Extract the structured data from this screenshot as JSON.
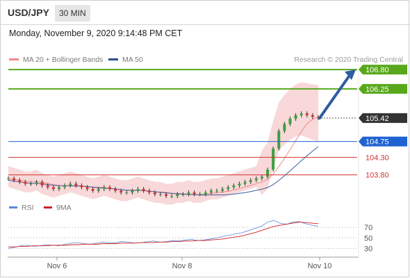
{
  "header": {
    "pair": "USD/JPY",
    "timeframe": "30 MIN"
  },
  "datetime": "Monday, November 9, 2020 9:14:48 PM CET",
  "legend": {
    "ma20": "MA 20 + Bollinger Bands",
    "ma50": "MA 50",
    "credit": "Research © 2020 Trading Central"
  },
  "rsi_legend": {
    "rsi": "RSI",
    "ma": "9MA"
  },
  "colors": {
    "green": "#58a81b",
    "blue": "#1f62d1",
    "red": "#d83030",
    "price": "#333333",
    "band": "#f5c8c8",
    "rsi": "#5b86d6",
    "rsi_ma": "#d02020",
    "arrow": "#2d5da2"
  },
  "chart_data": [
    {
      "type": "candlestick",
      "ylim": [
        103.2,
        107.0
      ],
      "x_ticks": [
        "Nov 6",
        "Nov 8",
        "Nov 10"
      ],
      "levels": [
        {
          "value": 106.8,
          "label": "106.80",
          "style": "resistance-green"
        },
        {
          "value": 106.25,
          "label": "106.25",
          "style": "resistance-green"
        },
        {
          "value": 105.42,
          "label": "105.42",
          "style": "current-price"
        },
        {
          "value": 104.75,
          "label": "104.75",
          "style": "pivot-blue"
        },
        {
          "value": 104.3,
          "label": "104.30",
          "style": "support-red"
        },
        {
          "value": 103.8,
          "label": "103.80",
          "style": "support-red"
        }
      ],
      "close_path": [
        103.7,
        103.65,
        103.6,
        103.55,
        103.55,
        103.6,
        103.5,
        103.45,
        103.4,
        103.45,
        103.5,
        103.55,
        103.5,
        103.45,
        103.4,
        103.35,
        103.4,
        103.45,
        103.4,
        103.35,
        103.3,
        103.3,
        103.35,
        103.4,
        103.35,
        103.3,
        103.25,
        103.25,
        103.2,
        103.2,
        103.25,
        103.25,
        103.3,
        103.25,
        103.25,
        103.3,
        103.35,
        103.35,
        103.4,
        103.45,
        103.5,
        103.55,
        103.6,
        103.65,
        103.7,
        103.75,
        103.95,
        104.55,
        105.05,
        105.25,
        105.4,
        105.5,
        105.55,
        105.5,
        105.45,
        105.42
      ],
      "projection": "up toward 106.80"
    },
    {
      "type": "line",
      "title": "RSI",
      "ylim": [
        20,
        90
      ],
      "y_ticks": [
        70,
        50,
        30
      ],
      "rsi": [
        30,
        32,
        35,
        36,
        34,
        35,
        37,
        36,
        35,
        38,
        40,
        41,
        39,
        38,
        40,
        42,
        40,
        41,
        43,
        42,
        40,
        41,
        43,
        44,
        42,
        43,
        45,
        44,
        46,
        47,
        45,
        46,
        48,
        50,
        53,
        55,
        58,
        60,
        64,
        68,
        72,
        80,
        83,
        78,
        76,
        80,
        81,
        77,
        74,
        72
      ],
      "rsi_ma": [
        33,
        33,
        34,
        34,
        35,
        35,
        35,
        36,
        36,
        36,
        37,
        37,
        38,
        38,
        38,
        39,
        39,
        39,
        40,
        40,
        40,
        41,
        41,
        41,
        42,
        42,
        43,
        43,
        44,
        44,
        45,
        45,
        46,
        47,
        48,
        50,
        52,
        54,
        57,
        60,
        64,
        68,
        72,
        74,
        76,
        78,
        80,
        79,
        78,
        77
      ]
    }
  ]
}
